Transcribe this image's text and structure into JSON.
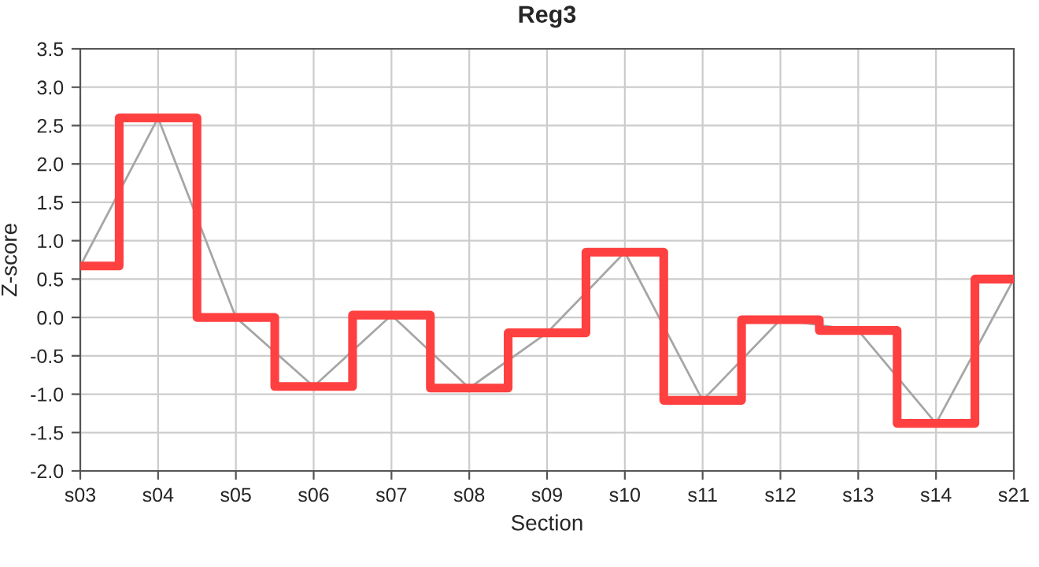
{
  "chart_data": {
    "type": "step",
    "title": "Reg3",
    "xlabel": "Section",
    "ylabel": "Z-score",
    "categories": [
      "s03",
      "s04",
      "s05",
      "s06",
      "s07",
      "s08",
      "s09",
      "s10",
      "s11",
      "s12",
      "s13",
      "s14",
      "s21"
    ],
    "series": [
      {
        "type": "line",
        "color": "#a6a6a6",
        "values": [
          0.67,
          2.6,
          0.0,
          -0.9,
          0.03,
          -0.92,
          -0.2,
          0.85,
          -1.08,
          -0.03,
          -0.17,
          -1.38,
          0.5
        ]
      },
      {
        "color": "#ff4040",
        "values": [
          0.67,
          2.6,
          0.0,
          -0.9,
          0.03,
          -0.92,
          -0.2,
          0.85,
          -1.08,
          -0.03,
          -0.17,
          -1.38,
          0.5
        ]
      }
    ],
    "ylim": [
      -2.0,
      3.5
    ],
    "yticks": [
      {
        "value": -2.0,
        "label": "-2.0"
      },
      {
        "value": -1.5,
        "label": "-1.5"
      },
      {
        "value": -1.0,
        "label": "-1.0"
      },
      {
        "value": -0.5,
        "label": "-0.5"
      },
      {
        "value": 0.0,
        "label": "0.0"
      },
      {
        "value": 0.5,
        "label": "0.5"
      },
      {
        "value": 1.0,
        "label": "1.0"
      },
      {
        "value": 1.5,
        "label": "1.5"
      },
      {
        "value": 2.0,
        "label": "2.0"
      },
      {
        "value": 2.5,
        "label": "2.5"
      },
      {
        "value": 3.0,
        "label": "3.0"
      },
      {
        "value": 3.5,
        "label": "3.5"
      }
    ],
    "grid": true
  }
}
